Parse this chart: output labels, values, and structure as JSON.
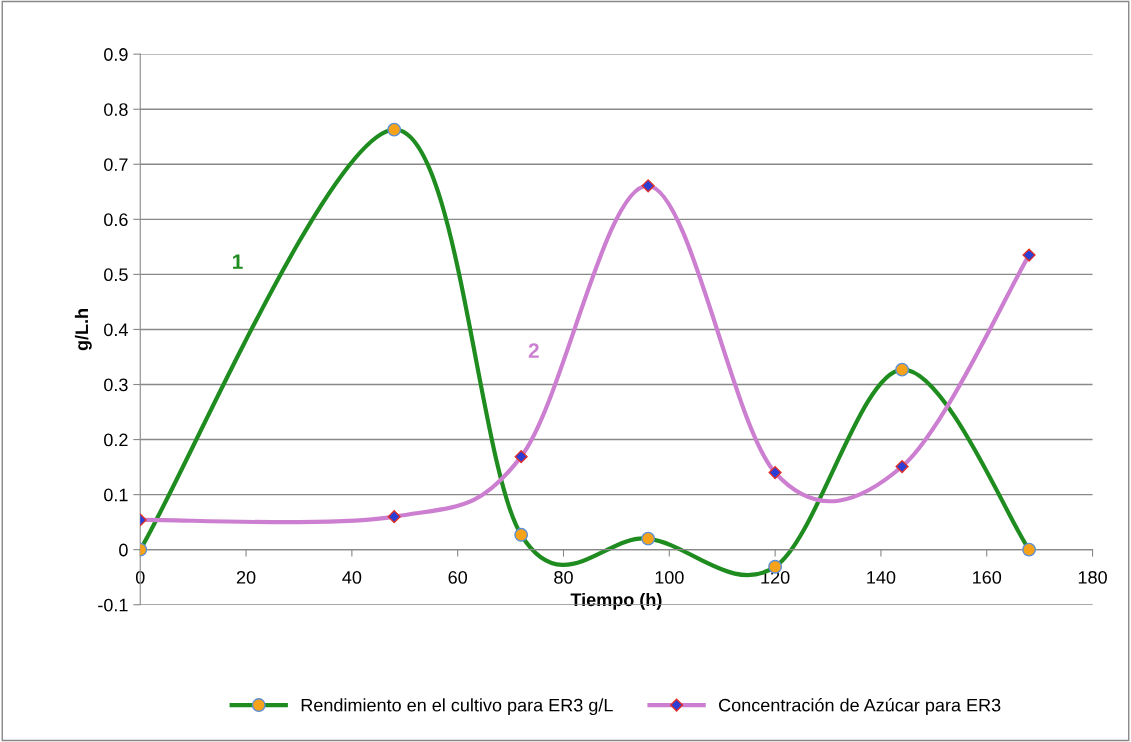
{
  "chart_data": {
    "type": "line",
    "xlabel": "Tiempo (h)",
    "ylabel": "g/L.h",
    "x": [
      0,
      48,
      72,
      96,
      120,
      144,
      168
    ],
    "series": [
      {
        "name": "Rendimiento en el cultivo para ER3 g/L",
        "color": "#1e8c1e",
        "marker": "circle",
        "values": [
          0,
          0.763,
          0.027,
          0.02,
          -0.031,
          0.327,
          0
        ]
      },
      {
        "name": "Concentración de Azúcar para ER3",
        "color": "#cc7fd0",
        "marker": "diamond",
        "values": [
          0.054,
          0.06,
          0.169,
          0.661,
          0.14,
          0.151,
          0.535
        ]
      }
    ],
    "annotations": [
      "1",
      "2"
    ],
    "xlim": [
      0,
      180
    ],
    "xticks": [
      0,
      20,
      40,
      60,
      80,
      100,
      120,
      140,
      160,
      180
    ],
    "ylim": [
      -0.1,
      0.9
    ],
    "yticks": [
      -0.1,
      0,
      0.1,
      0.2,
      0.3,
      0.4,
      0.5,
      0.6,
      0.7,
      0.8,
      0.9
    ],
    "grid": "y",
    "legend": "bottom",
    "line_style": "solid"
  }
}
